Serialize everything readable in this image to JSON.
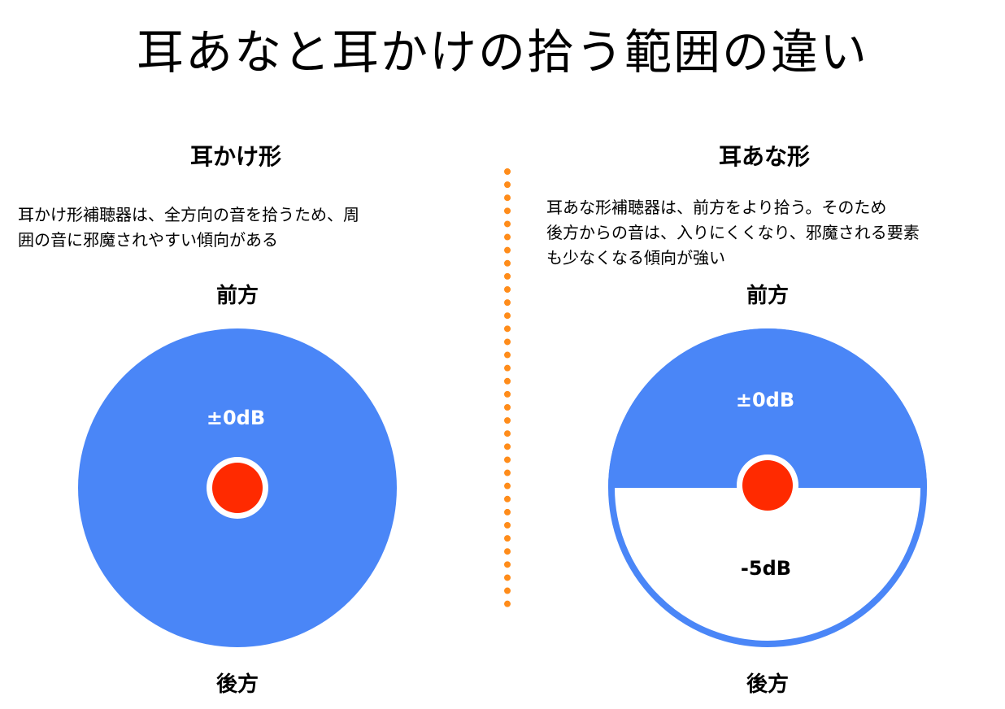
{
  "title": "耳あなと耳かけの拾う範囲の違い",
  "left_panel": {
    "heading": "耳かけ形",
    "description": "耳かけ形補聴器は、全方向の音を拾うため、周\n囲の音に邪魔されやすい傾向がある",
    "front_label": "前方",
    "back_label": "後方",
    "db_label": "±0dB"
  },
  "right_panel": {
    "heading": "耳あな形",
    "description": "耳あな形補聴器は、前方をより拾う。そのため\n後方からの音は、入りにくくなり、邪魔される要素\nも少なくなる傾向が強い",
    "front_label": "前方",
    "back_label": "後方",
    "front_db_label": "±0dB",
    "back_db_label": "-5dB"
  },
  "colors": {
    "pickup_area": "#4a86f7",
    "listener": "#ff2a00",
    "divider": "#ff8c1a"
  }
}
